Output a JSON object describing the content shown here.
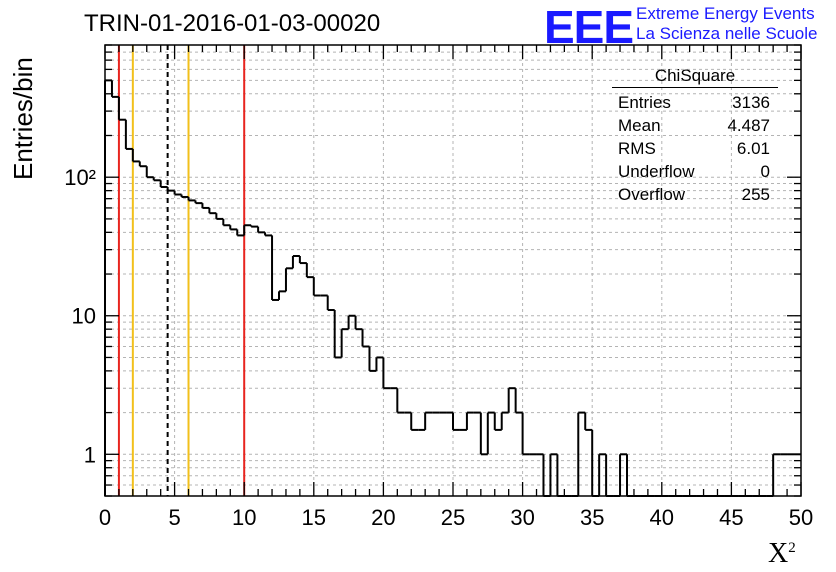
{
  "header": {
    "title": "TRIN-01-2016-01-03-00020",
    "logo_text": "EEE",
    "logo_line1": "Extreme Energy Events",
    "logo_line2": "La Scienza nelle Scuole"
  },
  "stats_box": {
    "title": "ChiSquare",
    "rows": [
      {
        "label": "Entries",
        "value": "3136"
      },
      {
        "label": "Mean",
        "value": "4.487"
      },
      {
        "label": "RMS",
        "value": "6.01"
      },
      {
        "label": "Underflow",
        "value": "0"
      },
      {
        "label": "Overflow",
        "value": "255"
      }
    ]
  },
  "colors": {
    "logo_blue": "#1a1aff",
    "red_line": "#e8251f",
    "yellow_line": "#f2c01b",
    "histogram": "#000000",
    "grid": "#b4b4b4"
  },
  "chart_data": {
    "type": "bar",
    "style": "step-histogram",
    "xlabel": "X²",
    "ylabel": "Entries/bin",
    "xlim": [
      0,
      50
    ],
    "ylim": [
      0.5,
      900
    ],
    "yscale": "log",
    "grid": true,
    "bin_width": 0.5,
    "x_ticks": [
      "0",
      "5",
      "10",
      "15",
      "20",
      "25",
      "30",
      "35",
      "40",
      "45",
      "50"
    ],
    "y_ticks": [
      {
        "value": 1,
        "label": "1"
      },
      {
        "value": 10,
        "label": "10"
      },
      {
        "value": 100,
        "label": "10²"
      }
    ],
    "values": [
      500,
      380,
      260,
      160,
      130,
      120,
      100,
      95,
      85,
      80,
      75,
      72,
      68,
      65,
      60,
      55,
      50,
      45,
      42,
      38,
      45,
      44,
      40,
      38,
      13,
      15,
      22,
      27,
      24,
      19,
      14,
      14,
      11,
      5,
      8,
      10,
      8,
      6,
      4,
      5,
      3,
      3,
      2,
      2,
      1.5,
      1.5,
      2,
      2,
      2,
      2,
      1.5,
      1.5,
      2,
      2,
      1,
      2,
      1.5,
      2,
      3,
      2,
      1,
      1,
      1,
      0,
      1,
      0,
      0,
      0,
      2,
      1.5,
      0,
      1,
      0,
      0,
      1,
      0,
      0,
      0,
      0,
      0,
      0,
      0,
      0,
      0,
      0,
      0,
      0,
      0,
      0,
      0,
      0,
      0,
      0,
      0,
      0,
      0,
      1,
      1,
      1,
      1
    ],
    "vertical_lines": [
      {
        "x": 1,
        "color": "red",
        "style": "solid"
      },
      {
        "x": 2,
        "color": "yellow",
        "style": "solid"
      },
      {
        "x": 4.5,
        "color": "black",
        "style": "dashed"
      },
      {
        "x": 6,
        "color": "yellow",
        "style": "solid"
      },
      {
        "x": 10,
        "color": "red",
        "style": "solid"
      }
    ]
  }
}
